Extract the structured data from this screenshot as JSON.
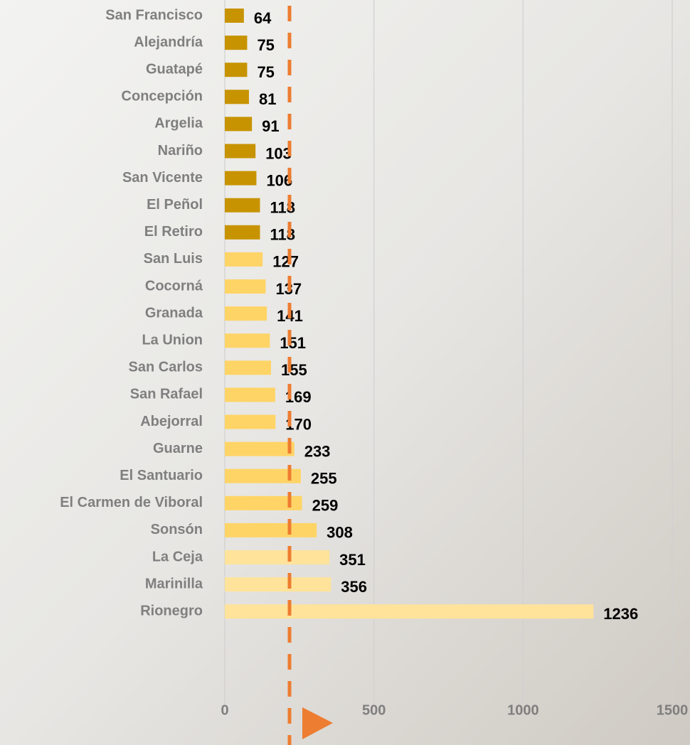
{
  "chart_data": {
    "type": "bar",
    "orientation": "horizontal",
    "categories": [
      "San Francisco",
      "Alejandría",
      "Guatapé",
      "Concepción",
      "Argelia",
      "Nariño",
      "San Vicente",
      "El Peñol",
      "El Retiro",
      "San Luis",
      "Cocorná",
      "Granada",
      "La Union",
      "San Carlos",
      "San Rafael",
      "Abejorral",
      "Guarne",
      "El Santuario",
      "El Carmen de Viboral",
      "Sonsón",
      "La Ceja",
      "Marinilla",
      "Rionegro"
    ],
    "values": [
      64,
      75,
      75,
      81,
      91,
      103,
      106,
      118,
      118,
      127,
      137,
      141,
      151,
      155,
      169,
      170,
      233,
      255,
      259,
      308,
      351,
      356,
      1236
    ],
    "colors": [
      "#c79300",
      "#c79300",
      "#c79300",
      "#c79300",
      "#c79300",
      "#c79300",
      "#c79300",
      "#c79300",
      "#c79300",
      "#ffd466",
      "#ffd466",
      "#ffd466",
      "#ffd466",
      "#ffd466",
      "#ffd466",
      "#ffd466",
      "#ffd466",
      "#ffd466",
      "#ffd466",
      "#ffd466",
      "#ffe39a",
      "#ffe39a",
      "#ffe39a"
    ],
    "xlim": [
      0,
      1500
    ],
    "xticks": [
      0,
      500,
      1000,
      1500
    ],
    "grid": true,
    "reference_value": 217,
    "reference_color": "#ed7d31"
  }
}
